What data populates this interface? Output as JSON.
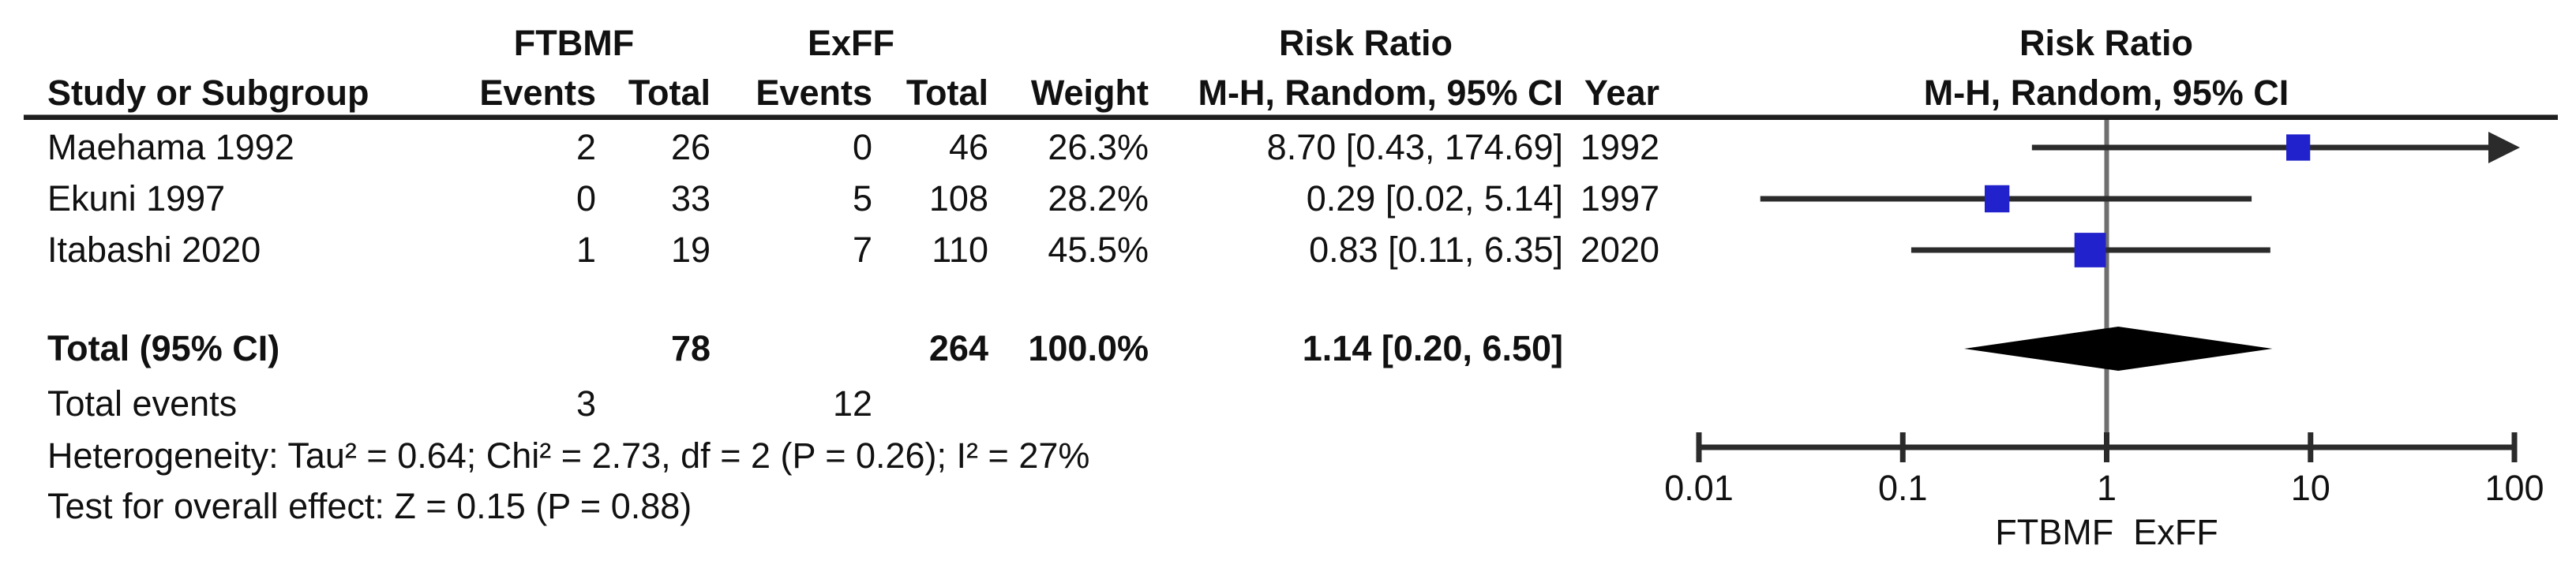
{
  "header": {
    "group1": "FTBMF",
    "group2": "ExFF",
    "risk_ratio_left": "Risk Ratio",
    "risk_ratio_right": "Risk Ratio",
    "col_study": "Study or Subgroup",
    "col_events1": "Events",
    "col_total1": "Total",
    "col_events2": "Events",
    "col_total2": "Total",
    "col_weight": "Weight",
    "col_ci": "M-H, Random, 95% CI",
    "col_year": "Year",
    "plot_ci": "M-H, Random, 95% CI"
  },
  "rows": [
    {
      "study": "Maehama 1992",
      "e1": "2",
      "t1": "26",
      "e2": "0",
      "t2": "46",
      "weight": "26.3%",
      "ci": "8.70 [0.43, 174.69]",
      "year": "1992"
    },
    {
      "study": "Ekuni 1997",
      "e1": "0",
      "t1": "33",
      "e2": "5",
      "t2": "108",
      "weight": "28.2%",
      "ci": "0.29 [0.02, 5.14]",
      "year": "1997"
    },
    {
      "study": "Itabashi 2020",
      "e1": "1",
      "t1": "19",
      "e2": "7",
      "t2": "110",
      "weight": "45.5%",
      "ci": "0.83 [0.11, 6.35]",
      "year": "2020"
    }
  ],
  "total_row": {
    "label": "Total (95% CI)",
    "t1": "78",
    "t2": "264",
    "weight": "100.0%",
    "ci": "1.14 [0.20, 6.50]"
  },
  "total_events": {
    "label": "Total events",
    "e1": "3",
    "e2": "12"
  },
  "footnotes": {
    "heterogeneity": "Heterogeneity: Tau² = 0.64; Chi² = 2.73, df = 2 (P = 0.26); I² = 27%",
    "overall_effect": "Test for overall effect: Z = 0.15 (P = 0.88)"
  },
  "chart_data": {
    "type": "forest",
    "title": "Risk Ratio",
    "subtitle": "M-H, Random, 95% CI",
    "x_axis": {
      "scale": "log10",
      "min": 0.01,
      "max": 100,
      "ticks": [
        0.01,
        0.1,
        1,
        10,
        100
      ],
      "tick_labels": [
        "0.01",
        "0.1",
        "1",
        "10",
        "100"
      ]
    },
    "axis_caption_left": "FTBMF",
    "axis_caption_right": "ExFF",
    "null_line_value": 1,
    "studies": [
      {
        "name": "Maehama 1992",
        "rr": 8.7,
        "ci_low": 0.43,
        "ci_high": 174.69,
        "weight_pct": 26.3,
        "year": 1992
      },
      {
        "name": "Ekuni 1997",
        "rr": 0.29,
        "ci_low": 0.02,
        "ci_high": 5.14,
        "weight_pct": 28.2,
        "year": 1997
      },
      {
        "name": "Itabashi 2020",
        "rr": 0.83,
        "ci_low": 0.11,
        "ci_high": 6.35,
        "weight_pct": 45.5,
        "year": 2020
      }
    ],
    "overall": {
      "label": "Total (95% CI)",
      "rr": 1.14,
      "ci_low": 0.2,
      "ci_high": 6.5,
      "weight_pct": 100.0
    },
    "heterogeneity": {
      "tau2": 0.64,
      "chi2": 2.73,
      "df": 2,
      "p": 0.26,
      "i2_pct": 27
    },
    "overall_test": {
      "z": 0.15,
      "p": 0.88
    },
    "colors": {
      "square": "#2222cc",
      "diamond": "#000000",
      "ci_line": "#2b2b2b",
      "guideline": "#6f6f6f",
      "axis": "#2b2b2b",
      "text": "#111111"
    }
  }
}
